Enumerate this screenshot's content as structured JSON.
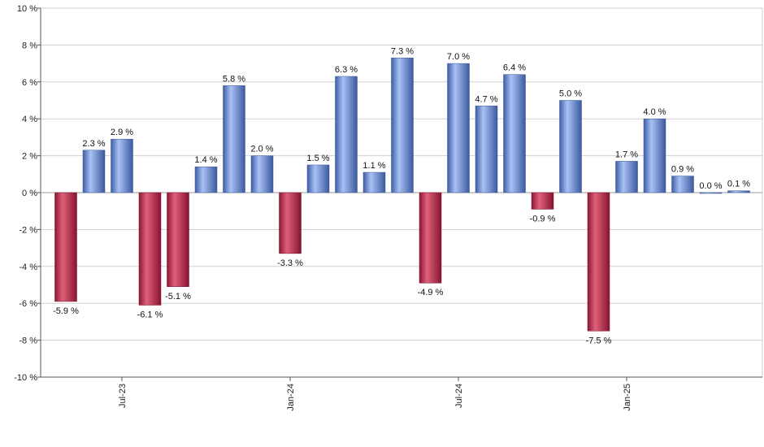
{
  "chart_data": {
    "type": "bar",
    "title": "",
    "xlabel": "",
    "ylabel": "",
    "ylim": [
      -10,
      10
    ],
    "yticks": [
      -10,
      -8,
      -6,
      -4,
      -2,
      0,
      2,
      4,
      6,
      8,
      10
    ],
    "ytick_labels": [
      "-10 %",
      "-8 %",
      "-6 %",
      "-4 %",
      "-2 %",
      "0 %",
      "2 %",
      "4 %",
      "6 %",
      "8 %",
      "10 %"
    ],
    "grid": true,
    "colors": {
      "positive": "#6d8fd9",
      "negative": "#c0314f"
    },
    "values": [
      -5.9,
      2.3,
      2.9,
      -6.1,
      -5.1,
      1.4,
      5.8,
      2.0,
      -3.3,
      1.5,
      6.3,
      1.1,
      7.3,
      -4.9,
      7.0,
      4.7,
      6.4,
      -0.9,
      5.0,
      -7.5,
      1.7,
      4.0,
      0.9,
      0.0,
      0.1
    ],
    "labels": [
      "-5.9 %",
      "2.3 %",
      "2.9 %",
      "-6.1 %",
      "-5.1 %",
      "1.4 %",
      "5.8 %",
      "2.0 %",
      "-3.3 %",
      "1.5 %",
      "6.3 %",
      "1.1 %",
      "7.3 %",
      "-4.9 %",
      "7.0 %",
      "4.7 %",
      "6.4 %",
      "-0.9 %",
      "5.0 %",
      "-7.5 %",
      "1.7 %",
      "4.0 %",
      "0.9 %",
      "0.0 %",
      "0.1 %"
    ],
    "xticks": [
      {
        "label": "Jul-23",
        "bar_index": 2
      },
      {
        "label": "Jan-24",
        "bar_index": 8
      },
      {
        "label": "Jul-24",
        "bar_index": 14
      },
      {
        "label": "Jan-25",
        "bar_index": 20
      }
    ]
  }
}
